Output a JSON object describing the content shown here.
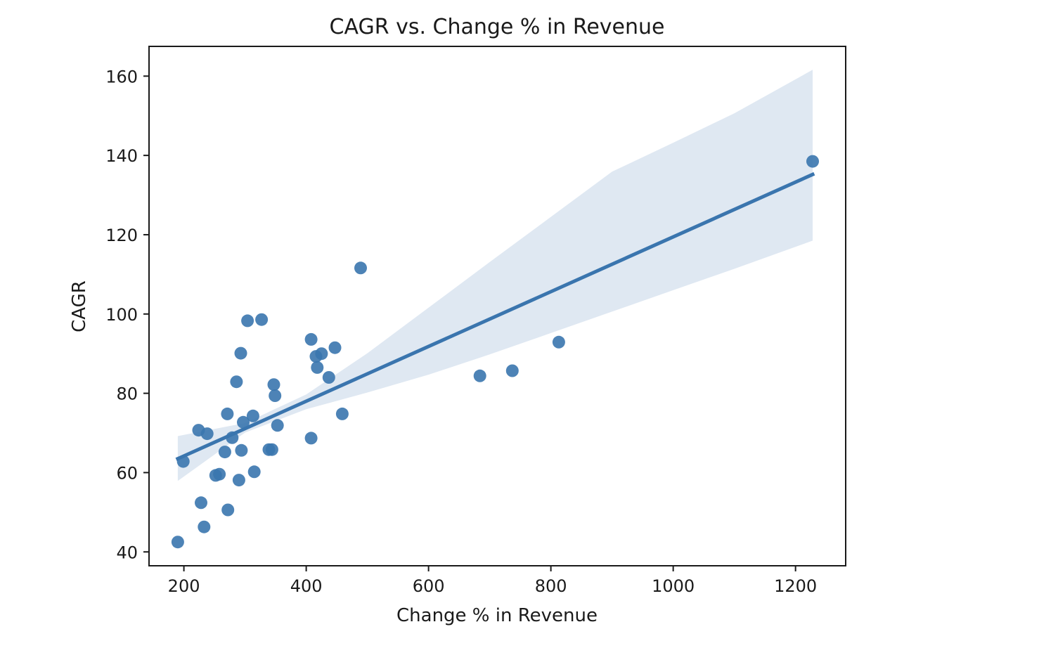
{
  "chart_data": {
    "type": "scatter",
    "title": "CAGR vs. Change % in Revenue",
    "xlabel": "Change % in Revenue",
    "ylabel": "CAGR",
    "xlim": [
      143,
      1282
    ],
    "ylim": [
      36.5,
      167.5
    ],
    "xticks": [
      200,
      400,
      600,
      800,
      1000,
      1200
    ],
    "yticks": [
      40,
      60,
      80,
      100,
      120,
      140,
      160
    ],
    "grid": false,
    "legend": "none",
    "colors": {
      "points": "#3a75ae",
      "line": "#3a75ae",
      "band": "#dfe8f2"
    },
    "points": [
      {
        "x": 190,
        "y": 42.5
      },
      {
        "x": 199,
        "y": 62.8
      },
      {
        "x": 224,
        "y": 70.7
      },
      {
        "x": 228,
        "y": 52.4
      },
      {
        "x": 233,
        "y": 46.3
      },
      {
        "x": 238,
        "y": 69.8
      },
      {
        "x": 252,
        "y": 59.3
      },
      {
        "x": 258,
        "y": 59.6
      },
      {
        "x": 267,
        "y": 65.2
      },
      {
        "x": 271,
        "y": 74.8
      },
      {
        "x": 272,
        "y": 50.6
      },
      {
        "x": 279,
        "y": 68.8
      },
      {
        "x": 286,
        "y": 82.9
      },
      {
        "x": 290,
        "y": 58.1
      },
      {
        "x": 293,
        "y": 90.1
      },
      {
        "x": 294,
        "y": 65.6
      },
      {
        "x": 297,
        "y": 72.7
      },
      {
        "x": 304,
        "y": 98.3
      },
      {
        "x": 313,
        "y": 74.3
      },
      {
        "x": 315,
        "y": 60.2
      },
      {
        "x": 327,
        "y": 98.6
      },
      {
        "x": 339,
        "y": 65.8
      },
      {
        "x": 344,
        "y": 65.8
      },
      {
        "x": 347,
        "y": 82.2
      },
      {
        "x": 349,
        "y": 79.4
      },
      {
        "x": 353,
        "y": 71.9
      },
      {
        "x": 408,
        "y": 68.7
      },
      {
        "x": 408,
        "y": 93.6
      },
      {
        "x": 416,
        "y": 89.3
      },
      {
        "x": 418,
        "y": 86.5
      },
      {
        "x": 425,
        "y": 90.0
      },
      {
        "x": 437,
        "y": 84.0
      },
      {
        "x": 447,
        "y": 91.5
      },
      {
        "x": 459,
        "y": 74.8
      },
      {
        "x": 489,
        "y": 111.6
      },
      {
        "x": 684,
        "y": 84.4
      },
      {
        "x": 737,
        "y": 85.7
      },
      {
        "x": 813,
        "y": 92.9
      },
      {
        "x": 1228,
        "y": 138.5
      }
    ],
    "regression_line": [
      {
        "x": 190,
        "y": 63.5
      },
      {
        "x": 1228,
        "y": 135.2
      }
    ],
    "confidence_band": {
      "x": [
        190,
        300,
        400,
        500,
        600,
        700,
        800,
        900,
        1000,
        1100,
        1228
      ],
      "upper": [
        69.2,
        72.5,
        79.7,
        90.1,
        101.6,
        113.1,
        124.5,
        135.9,
        143.2,
        150.6,
        161.6
      ],
      "lower": [
        57.9,
        70.1,
        76.0,
        80.2,
        84.7,
        89.8,
        95.2,
        100.6,
        106.0,
        111.4,
        118.5
      ]
    }
  }
}
